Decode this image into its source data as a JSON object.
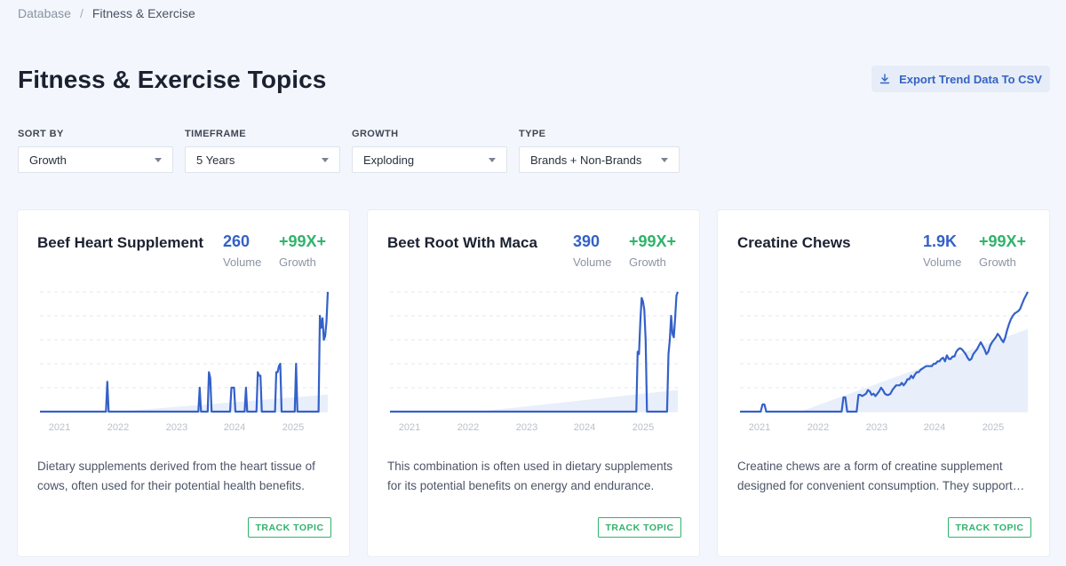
{
  "breadcrumb": {
    "root": "Database",
    "separator": "/",
    "current": "Fitness & Exercise"
  },
  "page": {
    "title": "Fitness & Exercise Topics",
    "export_label": "Export Trend Data To CSV"
  },
  "filters": [
    {
      "label": "SORT BY",
      "value": "Growth"
    },
    {
      "label": "TIMEFRAME",
      "value": "5 Years"
    },
    {
      "label": "GROWTH",
      "value": "Exploding"
    },
    {
      "label": "TYPE",
      "value": "Brands + Non-Brands"
    }
  ],
  "colors": {
    "accent": "#3461c8",
    "growth": "#2fb36b",
    "trend_fill": "#e8effb"
  },
  "cards": [
    {
      "title": "Beef Heart Supplement",
      "volume": "260",
      "volume_label": "Volume",
      "growth": "+99X+",
      "growth_label": "Growth",
      "description": "Dietary supplements derived from the heart tissue of cows, often used for their potential health benefits.",
      "track_label": "TRACK TOPIC"
    },
    {
      "title": "Beet Root With Maca",
      "volume": "390",
      "volume_label": "Volume",
      "growth": "+99X+",
      "growth_label": "Growth",
      "description": "This combination is often used in dietary supplements for its potential benefits on energy and endurance.",
      "track_label": "TRACK TOPIC"
    },
    {
      "title": "Creatine Chews",
      "volume": "1.9K",
      "volume_label": "Volume",
      "growth": "+99X+",
      "growth_label": "Growth",
      "description": "Creatine chews are a form of creatine supplement designed for convenient consumption. They support muscle performance.",
      "track_label": "TRACK TOPIC"
    }
  ],
  "chart_data": [
    {
      "type": "line",
      "x_ticks": [
        "2021",
        "2022",
        "2023",
        "2024",
        "2025"
      ],
      "ylim": [
        0,
        100
      ],
      "series": [
        {
          "values": [
            0,
            0,
            0,
            0,
            0,
            0,
            0,
            0,
            0,
            0,
            0,
            0,
            0,
            0,
            0,
            0,
            0,
            0,
            0,
            0,
            0,
            0,
            0,
            0,
            0,
            0,
            0,
            0,
            0,
            0,
            0,
            0,
            0,
            0,
            0,
            0,
            0,
            0,
            0,
            0,
            0,
            0,
            0,
            0,
            0,
            0,
            0,
            0,
            0,
            0,
            0,
            25,
            0,
            0,
            0,
            0,
            0,
            0,
            0,
            0,
            0,
            0,
            0,
            0,
            0,
            0,
            0,
            0,
            0,
            0,
            0,
            0,
            0,
            0,
            0,
            0,
            0,
            0,
            0,
            0,
            0,
            0,
            0,
            0,
            0,
            0,
            0,
            0,
            0,
            0,
            0,
            0,
            0,
            0,
            0,
            0,
            0,
            0,
            0,
            0,
            0,
            0,
            0,
            0,
            0,
            0,
            0,
            0,
            0,
            0,
            0,
            0,
            0,
            0,
            0,
            0,
            0,
            0,
            0,
            0,
            0,
            20,
            0,
            0,
            0,
            0,
            0,
            0,
            33,
            28,
            0,
            0,
            0,
            0,
            0,
            0,
            0,
            0,
            0,
            0,
            0,
            0,
            0,
            0,
            0,
            20,
            20,
            20,
            0,
            0,
            0,
            0,
            0,
            0,
            0,
            0,
            20,
            0,
            0,
            0,
            0,
            0,
            0,
            0,
            0,
            33,
            30,
            30,
            0,
            0,
            0,
            0,
            0,
            0,
            0,
            0,
            0,
            0,
            0,
            33,
            33,
            38,
            40,
            0,
            0,
            0,
            0,
            0,
            0,
            0,
            0,
            0,
            0,
            0,
            40,
            0,
            0,
            0,
            0,
            0,
            0,
            0,
            0,
            0,
            0,
            0,
            0,
            0,
            0,
            0,
            0,
            0,
            80,
            70,
            78,
            60,
            63,
            75,
            100
          ]
        }
      ]
    },
    {
      "type": "line",
      "x_ticks": [
        "2021",
        "2022",
        "2023",
        "2024",
        "2025"
      ],
      "ylim": [
        0,
        100
      ],
      "series": [
        {
          "values": [
            0,
            0,
            0,
            0,
            0,
            0,
            0,
            0,
            0,
            0,
            0,
            0,
            0,
            0,
            0,
            0,
            0,
            0,
            0,
            0,
            0,
            0,
            0,
            0,
            0,
            0,
            0,
            0,
            0,
            0,
            0,
            0,
            0,
            0,
            0,
            0,
            0,
            0,
            0,
            0,
            0,
            0,
            0,
            0,
            0,
            0,
            0,
            0,
            0,
            0,
            0,
            0,
            0,
            0,
            0,
            0,
            0,
            0,
            0,
            0,
            0,
            0,
            0,
            0,
            0,
            0,
            0,
            0,
            0,
            0,
            0,
            0,
            0,
            0,
            0,
            0,
            0,
            0,
            0,
            0,
            0,
            0,
            0,
            0,
            0,
            0,
            0,
            0,
            0,
            0,
            0,
            0,
            0,
            0,
            0,
            0,
            0,
            0,
            0,
            0,
            0,
            0,
            0,
            0,
            0,
            0,
            0,
            0,
            0,
            0,
            0,
            0,
            0,
            0,
            0,
            0,
            0,
            0,
            0,
            0,
            0,
            0,
            0,
            0,
            0,
            0,
            0,
            0,
            0,
            0,
            0,
            0,
            0,
            0,
            0,
            0,
            0,
            0,
            0,
            0,
            0,
            0,
            0,
            0,
            0,
            0,
            0,
            0,
            0,
            0,
            0,
            0,
            0,
            0,
            0,
            0,
            0,
            0,
            0,
            0,
            0,
            0,
            0,
            0,
            0,
            0,
            0,
            0,
            0,
            0,
            0,
            0,
            0,
            0,
            0,
            0,
            0,
            0,
            0,
            0,
            0,
            0,
            0,
            0,
            0,
            50,
            48,
            75,
            95,
            92,
            85,
            60,
            0,
            0,
            0,
            0,
            0,
            0,
            0,
            0,
            0,
            0,
            0,
            0,
            0,
            0,
            0,
            0,
            48,
            60,
            80,
            65,
            62,
            78,
            97,
            100
          ]
        }
      ]
    },
    {
      "type": "line",
      "x_ticks": [
        "2021",
        "2022",
        "2023",
        "2024",
        "2025"
      ],
      "ylim": [
        0,
        100
      ],
      "series": [
        {
          "values": [
            0,
            0,
            0,
            0,
            0,
            0,
            0,
            0,
            0,
            0,
            0,
            0,
            6,
            6,
            0,
            0,
            0,
            0,
            0,
            0,
            0,
            0,
            0,
            0,
            0,
            0,
            0,
            0,
            0,
            0,
            0,
            0,
            0,
            0,
            0,
            0,
            0,
            0,
            0,
            0,
            0,
            0,
            0,
            0,
            0,
            0,
            0,
            0,
            0,
            0,
            0,
            0,
            0,
            0,
            0,
            12,
            12,
            0,
            0,
            0,
            0,
            0,
            0,
            14,
            14,
            13,
            14,
            15,
            18,
            17,
            14,
            15,
            13,
            15,
            17,
            20,
            18,
            15,
            14,
            14,
            15,
            18,
            20,
            22,
            22,
            22,
            24,
            22,
            24,
            27,
            27,
            30,
            28,
            31,
            33,
            33,
            35,
            36,
            37,
            38,
            38,
            38,
            38,
            40,
            40,
            42,
            42,
            44,
            45,
            42,
            47,
            44,
            44,
            46,
            46,
            50,
            52,
            53,
            52,
            50,
            48,
            45,
            43,
            44,
            48,
            50,
            52,
            55,
            58,
            55,
            52,
            48,
            50,
            55,
            58,
            60,
            62,
            65,
            63,
            60,
            58,
            62,
            68,
            73,
            77,
            80,
            82,
            83,
            84,
            86,
            90,
            94,
            97,
            100
          ]
        }
      ]
    }
  ]
}
